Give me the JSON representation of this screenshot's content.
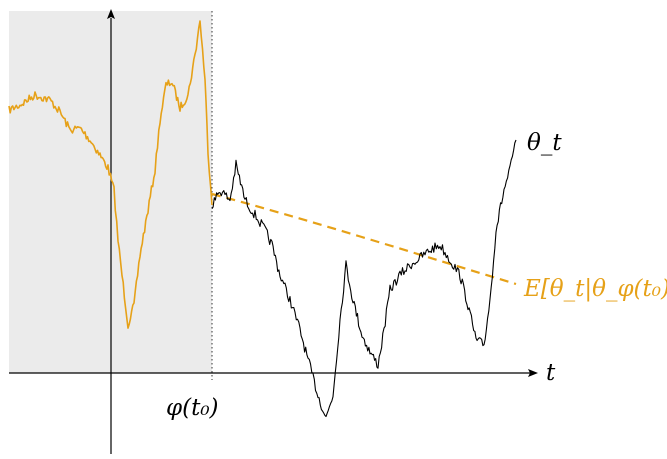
{
  "labels": {
    "process": "θ_t",
    "time_axis": "t",
    "tick": "φ(t₀)",
    "expectation": "E[θ_t|θ_φ(t₀)]"
  },
  "colors": {
    "past_path": "#e6a118",
    "future_path": "#000000",
    "expectation_curve": "#e6a118",
    "shaded_region": "#ebebeb"
  }
}
